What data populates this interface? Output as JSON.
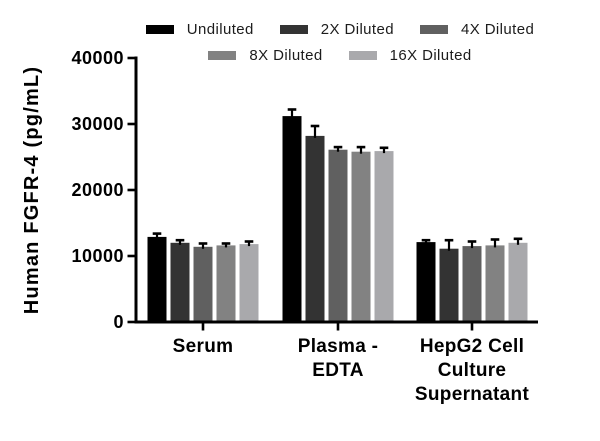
{
  "figure": {
    "background": "#ffffff",
    "axis_color": "#000000"
  },
  "chart_data": {
    "type": "bar",
    "ylabel": "Human FGFR-4 (pg/mL)",
    "ylim": [
      0,
      40000
    ],
    "yticks": [
      0,
      10000,
      20000,
      30000,
      40000
    ],
    "grid": false,
    "legend_position": "top",
    "legend_wrap_after": 3,
    "error_bars": true,
    "categories": [
      "Serum",
      "Plasma -\nEDTA",
      "HepG2 Cell\nCulture\nSupernatant"
    ],
    "series": [
      {
        "name": "Undiluted",
        "color": "#000000",
        "values": [
          12900,
          31200,
          12100
        ],
        "errors": [
          500,
          1000,
          300
        ]
      },
      {
        "name": "2X Diluted",
        "color": "#333333",
        "values": [
          12000,
          28200,
          11100
        ],
        "errors": [
          400,
          1500,
          1300
        ]
      },
      {
        "name": "4X Diluted",
        "color": "#606060",
        "values": [
          11400,
          26100,
          11500
        ],
        "errors": [
          500,
          400,
          700
        ]
      },
      {
        "name": "8X Diluted",
        "color": "#828282",
        "values": [
          11600,
          25800,
          11600
        ],
        "errors": [
          300,
          700,
          900
        ]
      },
      {
        "name": "16X Diluted",
        "color": "#a9a9ac",
        "values": [
          11800,
          25900,
          12000
        ],
        "errors": [
          400,
          500,
          600
        ]
      }
    ]
  }
}
